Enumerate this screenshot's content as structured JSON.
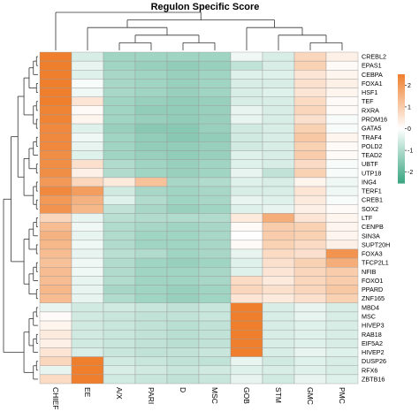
{
  "chart_data": {
    "type": "heatmap",
    "title": "Regulon Specific Score",
    "columns": [
      "CHIEF",
      "EE",
      "A/X",
      "PARI",
      "D",
      "MSC",
      "GOB",
      "STM",
      "GMC",
      "PMC"
    ],
    "rows": [
      "CREBL2",
      "EPAS1",
      "CEBPA",
      "FOXA1",
      "HSF1",
      "TEF",
      "RXRA",
      "PRDM16",
      "GATA5",
      "TRAF4",
      "POLD2",
      "TEAD2",
      "UBTF",
      "UTP18",
      "ING4",
      "TERF1",
      "CREB1",
      "SOX2",
      "LTF",
      "CENPB",
      "SIN3A",
      "SUPT20H",
      "FOXA3",
      "TFCP2L1",
      "NFIB",
      "FOXO1",
      "PPARD",
      "ZNF165",
      "MBD4",
      "MSC",
      "HIVEP3",
      "RAB18",
      "EIF5A2",
      "HIVEP2",
      "DUSP26",
      "RFX6",
      "ZBTB16"
    ],
    "values": [
      [
        2.6,
        -0.5,
        -1.2,
        -1.2,
        -1.2,
        -1.2,
        -0.2,
        -0.5,
        0.8,
        0.3
      ],
      [
        2.6,
        -0.3,
        -1.2,
        -1.3,
        -1.4,
        -1.3,
        -0.8,
        -0.5,
        0.9,
        0.1
      ],
      [
        2.6,
        -0.4,
        -1.1,
        -1.2,
        -1.3,
        -1.2,
        -0.4,
        -0.4,
        0.5,
        0.2
      ],
      [
        2.6,
        -0.1,
        -1.1,
        -1.2,
        -1.3,
        -1.2,
        -0.5,
        -0.5,
        0.6,
        0.3
      ],
      [
        2.6,
        -0.2,
        -1.1,
        -1.2,
        -1.3,
        -1.2,
        -0.5,
        -0.4,
        0.5,
        0.2
      ],
      [
        2.5,
        0.5,
        -1.2,
        -1.3,
        -1.4,
        -1.3,
        -0.5,
        -0.5,
        0.7,
        0.1
      ],
      [
        2.4,
        0.1,
        -1.2,
        -1.4,
        -1.4,
        -1.3,
        -0.3,
        -0.5,
        0.8,
        0.1
      ],
      [
        2.4,
        0.2,
        -1.2,
        -1.3,
        -1.4,
        -1.3,
        -0.3,
        -0.5,
        0.6,
        -0.1
      ],
      [
        2.3,
        -0.4,
        -1.3,
        -1.5,
        -1.5,
        -1.3,
        -0.6,
        -0.5,
        0.9,
        -0.1
      ],
      [
        2.3,
        -0.2,
        -1.2,
        -1.4,
        -1.5,
        -1.4,
        -0.6,
        -0.5,
        1.1,
        0.2
      ],
      [
        2.3,
        -0.3,
        -1.2,
        -1.4,
        -1.4,
        -1.3,
        -0.6,
        -0.5,
        0.9,
        0.1
      ],
      [
        2.2,
        -0.4,
        -1.2,
        -1.3,
        -1.4,
        -1.3,
        -0.4,
        -0.5,
        1.0,
        0.1
      ],
      [
        2.2,
        0.6,
        -1.0,
        -1.2,
        -1.3,
        -1.2,
        -0.4,
        -0.5,
        0.7,
        -0.1
      ],
      [
        2.2,
        0.3,
        -1.0,
        -1.2,
        -1.3,
        -1.2,
        -0.3,
        -0.8,
        0.9,
        -0.1
      ],
      [
        2.0,
        0.8,
        0.4,
        1.2,
        -1.1,
        -1.0,
        -0.4,
        -0.5,
        0.2,
        -0.2
      ],
      [
        2.3,
        1.9,
        -0.6,
        -1.1,
        -1.2,
        -1.1,
        -0.5,
        -0.5,
        0.5,
        -0.2
      ],
      [
        2.0,
        1.5,
        -0.4,
        -1.0,
        -1.2,
        -1.1,
        -0.3,
        -0.4,
        0.4,
        -0.1
      ],
      [
        2.1,
        1.4,
        -0.8,
        -1.1,
        -1.3,
        -1.2,
        -0.4,
        -0.3,
        0.3,
        0.1
      ],
      [
        0.8,
        -0.3,
        -0.9,
        -1.0,
        -1.0,
        -1.0,
        0.4,
        1.6,
        0.5,
        0.2
      ],
      [
        1.3,
        -0.2,
        -1.0,
        -1.1,
        -1.2,
        -1.1,
        0.1,
        1.0,
        0.9,
        0.2
      ],
      [
        1.5,
        -0.3,
        -1.0,
        -1.2,
        -1.2,
        -1.1,
        0.0,
        1.0,
        0.9,
        0.2
      ],
      [
        1.4,
        -0.2,
        -1.0,
        -1.2,
        -1.2,
        -1.1,
        0.1,
        0.9,
        0.7,
        0.3
      ],
      [
        1.3,
        -0.3,
        -0.9,
        -1.0,
        -1.2,
        -1.1,
        -0.3,
        0.7,
        0.6,
        2.1
      ],
      [
        1.2,
        -0.2,
        -1.0,
        -1.2,
        -1.3,
        -1.2,
        -0.4,
        0.6,
        0.9,
        1.6
      ],
      [
        1.3,
        -0.2,
        -1.0,
        -1.2,
        -1.2,
        -1.1,
        -0.4,
        0.5,
        0.8,
        1.0
      ],
      [
        1.3,
        -0.3,
        -1.0,
        -1.2,
        -1.2,
        -1.1,
        0.7,
        0.4,
        0.8,
        1.0
      ],
      [
        1.4,
        -0.3,
        -1.1,
        -1.2,
        -1.3,
        -1.2,
        0.8,
        0.6,
        0.8,
        1.1
      ],
      [
        1.3,
        -0.3,
        -1.0,
        -1.2,
        -1.3,
        -1.2,
        0.5,
        0.4,
        0.6,
        0.9
      ],
      [
        -0.3,
        -0.6,
        -0.6,
        -0.7,
        -0.8,
        -0.7,
        2.6,
        -0.5,
        -0.3,
        -0.5
      ],
      [
        0.1,
        -0.6,
        -0.7,
        -0.8,
        -0.8,
        -0.7,
        2.6,
        -0.5,
        -0.3,
        -0.5
      ],
      [
        0.2,
        -0.6,
        -0.7,
        -0.8,
        -0.9,
        -0.8,
        2.6,
        -0.5,
        -0.4,
        -0.5
      ],
      [
        0.4,
        -0.6,
        -0.7,
        -0.8,
        -0.9,
        -0.8,
        2.6,
        -0.5,
        -0.4,
        -0.5
      ],
      [
        0.3,
        -0.6,
        -0.7,
        -0.8,
        -0.9,
        -0.8,
        2.6,
        -0.5,
        -0.4,
        -0.5
      ],
      [
        0.5,
        -0.5,
        -0.7,
        -0.8,
        -0.8,
        -0.7,
        2.6,
        -0.5,
        -0.3,
        -0.4
      ],
      [
        0.8,
        2.7,
        -0.6,
        -0.7,
        -0.8,
        -0.8,
        -0.3,
        -0.6,
        -0.4,
        -0.5
      ],
      [
        -0.3,
        2.7,
        -0.5,
        -0.6,
        -0.7,
        -0.6,
        -0.4,
        -0.5,
        -0.4,
        -0.5
      ],
      [
        0.7,
        2.6,
        -0.6,
        -0.7,
        -0.8,
        -0.7,
        -0.3,
        -0.6,
        -0.3,
        -0.4
      ]
    ],
    "colorbar": {
      "ticks": [
        2,
        1,
        0,
        -1,
        -2
      ],
      "range": [
        -2.5,
        2.5
      ]
    },
    "colors": {
      "low": "#3aa581",
      "mid": "#ffffff",
      "high": "#ef7f2d",
      "grid": "#9a9a9a"
    }
  }
}
